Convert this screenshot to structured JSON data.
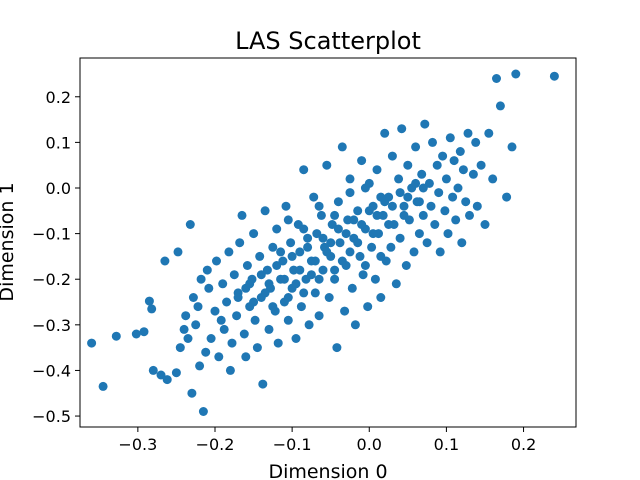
{
  "chart_data": {
    "type": "scatter",
    "title": "LAS Scatterplot",
    "xlabel": "Dimension 0",
    "ylabel": "Dimension 1",
    "xlim": [
      -0.375,
      0.268
    ],
    "ylim": [
      -0.524,
      0.285
    ],
    "xticks": [
      -0.3,
      -0.2,
      -0.1,
      0.0,
      0.1,
      0.2
    ],
    "xtick_labels": [
      "−0.3",
      "−0.2",
      "−0.1",
      "0.0",
      "0.1",
      "0.2"
    ],
    "yticks": [
      -0.5,
      -0.4,
      -0.3,
      -0.2,
      -0.1,
      0.0,
      0.1,
      0.2
    ],
    "ytick_labels": [
      "−0.5",
      "−0.4",
      "−0.3",
      "−0.2",
      "−0.1",
      "0.0",
      "0.1",
      "0.2"
    ],
    "grid": false,
    "marker_color": "#1f77b4",
    "series": [
      {
        "points": [
          [
            -0.36,
            -0.34
          ],
          [
            -0.345,
            -0.435
          ],
          [
            -0.328,
            -0.325
          ],
          [
            -0.302,
            -0.32
          ],
          [
            -0.292,
            -0.315
          ],
          [
            -0.285,
            -0.248
          ],
          [
            -0.282,
            -0.265
          ],
          [
            -0.28,
            -0.4
          ],
          [
            -0.27,
            -0.41
          ],
          [
            -0.265,
            -0.16
          ],
          [
            -0.262,
            -0.42
          ],
          [
            -0.25,
            -0.405
          ],
          [
            -0.248,
            -0.14
          ],
          [
            -0.245,
            -0.35
          ],
          [
            -0.24,
            -0.31
          ],
          [
            -0.238,
            -0.28
          ],
          [
            -0.235,
            -0.33
          ],
          [
            -0.232,
            -0.08
          ],
          [
            -0.23,
            -0.45
          ],
          [
            -0.228,
            -0.24
          ],
          [
            -0.225,
            -0.3
          ],
          [
            -0.222,
            -0.26
          ],
          [
            -0.22,
            -0.39
          ],
          [
            -0.218,
            -0.2
          ],
          [
            -0.215,
            -0.49
          ],
          [
            -0.212,
            -0.36
          ],
          [
            -0.21,
            -0.18
          ],
          [
            -0.208,
            -0.22
          ],
          [
            -0.205,
            -0.33
          ],
          [
            -0.2,
            -0.27
          ],
          [
            -0.198,
            -0.16
          ],
          [
            -0.195,
            -0.37
          ],
          [
            -0.192,
            -0.29
          ],
          [
            -0.19,
            -0.21
          ],
          [
            -0.188,
            -0.31
          ],
          [
            -0.185,
            -0.25
          ],
          [
            -0.182,
            -0.14
          ],
          [
            -0.18,
            -0.4
          ],
          [
            -0.178,
            -0.34
          ],
          [
            -0.175,
            -0.19
          ],
          [
            -0.172,
            -0.28
          ],
          [
            -0.17,
            -0.23
          ],
          [
            -0.168,
            -0.12
          ],
          [
            -0.165,
            -0.06
          ],
          [
            -0.162,
            -0.32
          ],
          [
            -0.16,
            -0.37
          ],
          [
            -0.158,
            -0.17
          ],
          [
            -0.155,
            -0.26
          ],
          [
            -0.152,
            -0.2
          ],
          [
            -0.15,
            -0.1
          ],
          [
            -0.148,
            -0.29
          ],
          [
            -0.145,
            -0.35
          ],
          [
            -0.142,
            -0.15
          ],
          [
            -0.14,
            -0.24
          ],
          [
            -0.138,
            -0.43
          ],
          [
            -0.135,
            -0.05
          ],
          [
            -0.132,
            -0.18
          ],
          [
            -0.13,
            -0.31
          ],
          [
            -0.128,
            -0.22
          ],
          [
            -0.125,
            -0.13
          ],
          [
            -0.122,
            -0.27
          ],
          [
            -0.12,
            -0.09
          ],
          [
            -0.118,
            -0.34
          ],
          [
            -0.115,
            -0.2
          ],
          [
            -0.112,
            -0.16
          ],
          [
            -0.11,
            -0.25
          ],
          [
            -0.108,
            -0.04
          ],
          [
            -0.105,
            -0.29
          ],
          [
            -0.102,
            -0.12
          ],
          [
            -0.1,
            -0.22
          ],
          [
            -0.098,
            -0.18
          ],
          [
            -0.095,
            -0.33
          ],
          [
            -0.092,
            -0.08
          ],
          [
            -0.09,
            -0.14
          ],
          [
            -0.088,
            -0.26
          ],
          [
            -0.085,
            0.04
          ],
          [
            -0.082,
            -0.2
          ],
          [
            -0.08,
            -0.11
          ],
          [
            -0.078,
            -0.3
          ],
          [
            -0.075,
            -0.16
          ],
          [
            -0.072,
            -0.02
          ],
          [
            -0.07,
            -0.23
          ],
          [
            -0.068,
            -0.1
          ],
          [
            -0.065,
            -0.28
          ],
          [
            -0.062,
            -0.06
          ],
          [
            -0.06,
            -0.18
          ],
          [
            -0.058,
            -0.13
          ],
          [
            -0.055,
            0.05
          ],
          [
            -0.052,
            -0.24
          ],
          [
            -0.05,
            -0.15
          ],
          [
            -0.048,
            -0.08
          ],
          [
            -0.045,
            -0.2
          ],
          [
            -0.042,
            -0.35
          ],
          [
            -0.04,
            -0.03
          ],
          [
            -0.038,
            -0.12
          ],
          [
            -0.035,
            0.09
          ],
          [
            -0.032,
            -0.27
          ],
          [
            -0.03,
            -0.17
          ],
          [
            -0.028,
            -0.07
          ],
          [
            -0.025,
            0.02
          ],
          [
            -0.022,
            -0.22
          ],
          [
            -0.02,
            -0.11
          ],
          [
            -0.018,
            -0.3
          ],
          [
            -0.015,
            -0.05
          ],
          [
            -0.012,
            -0.15
          ],
          [
            -0.01,
            0.06
          ],
          [
            -0.008,
            -0.19
          ],
          [
            -0.005,
            -0.09
          ],
          [
            -0.002,
            -0.26
          ],
          [
            0.0,
            0.01
          ],
          [
            0.003,
            -0.13
          ],
          [
            0.005,
            -0.04
          ],
          [
            0.008,
            -0.2
          ],
          [
            0.01,
            0.04
          ],
          [
            0.012,
            -0.1
          ],
          [
            0.015,
            -0.24
          ],
          [
            0.018,
            -0.06
          ],
          [
            0.02,
            0.12
          ],
          [
            0.022,
            -0.16
          ],
          [
            0.025,
            -0.02
          ],
          [
            0.028,
            -0.13
          ],
          [
            0.03,
            0.07
          ],
          [
            0.032,
            -0.08
          ],
          [
            0.035,
            -0.21
          ],
          [
            0.038,
            0.02
          ],
          [
            0.04,
            -0.11
          ],
          [
            0.042,
            0.13
          ],
          [
            0.045,
            -0.04
          ],
          [
            0.048,
            -0.17
          ],
          [
            0.05,
            0.05
          ],
          [
            0.052,
            -0.07
          ],
          [
            0.055,
            0.0
          ],
          [
            0.058,
            -0.14
          ],
          [
            0.06,
            0.09
          ],
          [
            0.062,
            -0.03
          ],
          [
            0.065,
            -0.1
          ],
          [
            0.068,
            0.03
          ],
          [
            0.07,
            -0.06
          ],
          [
            0.072,
            0.14
          ],
          [
            0.075,
            -0.12
          ],
          [
            0.078,
            0.01
          ],
          [
            0.08,
            -0.04
          ],
          [
            0.082,
            0.1
          ],
          [
            0.085,
            -0.08
          ],
          [
            0.088,
            0.05
          ],
          [
            0.09,
            -0.01
          ],
          [
            0.092,
            -0.14
          ],
          [
            0.095,
            0.07
          ],
          [
            0.098,
            -0.05
          ],
          [
            0.1,
            0.02
          ],
          [
            0.102,
            -0.1
          ],
          [
            0.105,
            0.11
          ],
          [
            0.108,
            -0.02
          ],
          [
            0.11,
            0.06
          ],
          [
            0.112,
            -0.07
          ],
          [
            0.115,
            0.0
          ],
          [
            0.118,
            0.08
          ],
          [
            0.12,
            -0.12
          ],
          [
            0.122,
            0.04
          ],
          [
            0.125,
            -0.03
          ],
          [
            0.128,
            0.12
          ],
          [
            0.13,
            -0.06
          ],
          [
            0.135,
            0.03
          ],
          [
            0.138,
            0.1
          ],
          [
            0.14,
            -0.04
          ],
          [
            0.145,
            0.05
          ],
          [
            0.15,
            -0.08
          ],
          [
            0.155,
            0.12
          ],
          [
            0.16,
            0.02
          ],
          [
            0.165,
            0.24
          ],
          [
            0.17,
            0.18
          ],
          [
            0.178,
            -0.02
          ],
          [
            0.185,
            0.09
          ],
          [
            0.19,
            0.25
          ],
          [
            0.24,
            0.245
          ],
          [
            -0.16,
            -0.22
          ],
          [
            -0.14,
            -0.19
          ],
          [
            -0.12,
            -0.17
          ],
          [
            -0.1,
            -0.15
          ],
          [
            -0.08,
            -0.13
          ],
          [
            -0.06,
            -0.11
          ],
          [
            -0.04,
            -0.09
          ],
          [
            -0.02,
            -0.07
          ],
          [
            0.0,
            -0.05
          ],
          [
            0.02,
            -0.03
          ],
          [
            0.04,
            -0.01
          ],
          [
            0.06,
            0.01
          ],
          [
            -0.15,
            -0.25
          ],
          [
            -0.13,
            -0.21
          ],
          [
            -0.11,
            -0.2
          ],
          [
            -0.09,
            -0.18
          ],
          [
            -0.07,
            -0.16
          ],
          [
            -0.05,
            -0.12
          ],
          [
            -0.03,
            -0.1
          ],
          [
            -0.01,
            -0.08
          ],
          [
            0.01,
            -0.06
          ],
          [
            0.03,
            -0.04
          ],
          [
            0.05,
            -0.02
          ],
          [
            0.07,
            0.0
          ],
          [
            -0.17,
            -0.24
          ],
          [
            -0.155,
            -0.21
          ],
          [
            -0.135,
            -0.23
          ],
          [
            -0.115,
            -0.14
          ],
          [
            -0.095,
            -0.21
          ],
          [
            -0.075,
            -0.19
          ],
          [
            -0.055,
            -0.14
          ],
          [
            -0.035,
            -0.16
          ],
          [
            -0.015,
            -0.12
          ],
          [
            0.005,
            -0.1
          ],
          [
            0.025,
            -0.08
          ],
          [
            0.045,
            -0.06
          ],
          [
            0.065,
            -0.03
          ],
          [
            -0.105,
            -0.07
          ],
          [
            -0.085,
            -0.09
          ],
          [
            -0.065,
            -0.04
          ],
          [
            -0.045,
            -0.06
          ],
          [
            -0.025,
            -0.01
          ],
          [
            -0.005,
            0.0
          ],
          [
            0.015,
            -0.02
          ],
          [
            -0.125,
            -0.26
          ],
          [
            -0.105,
            -0.24
          ],
          [
            -0.085,
            -0.23
          ],
          [
            -0.065,
            -0.2
          ],
          [
            -0.045,
            -0.18
          ],
          [
            -0.025,
            -0.14
          ],
          [
            -0.005,
            -0.17
          ],
          [
            0.015,
            -0.15
          ]
        ]
      }
    ]
  }
}
